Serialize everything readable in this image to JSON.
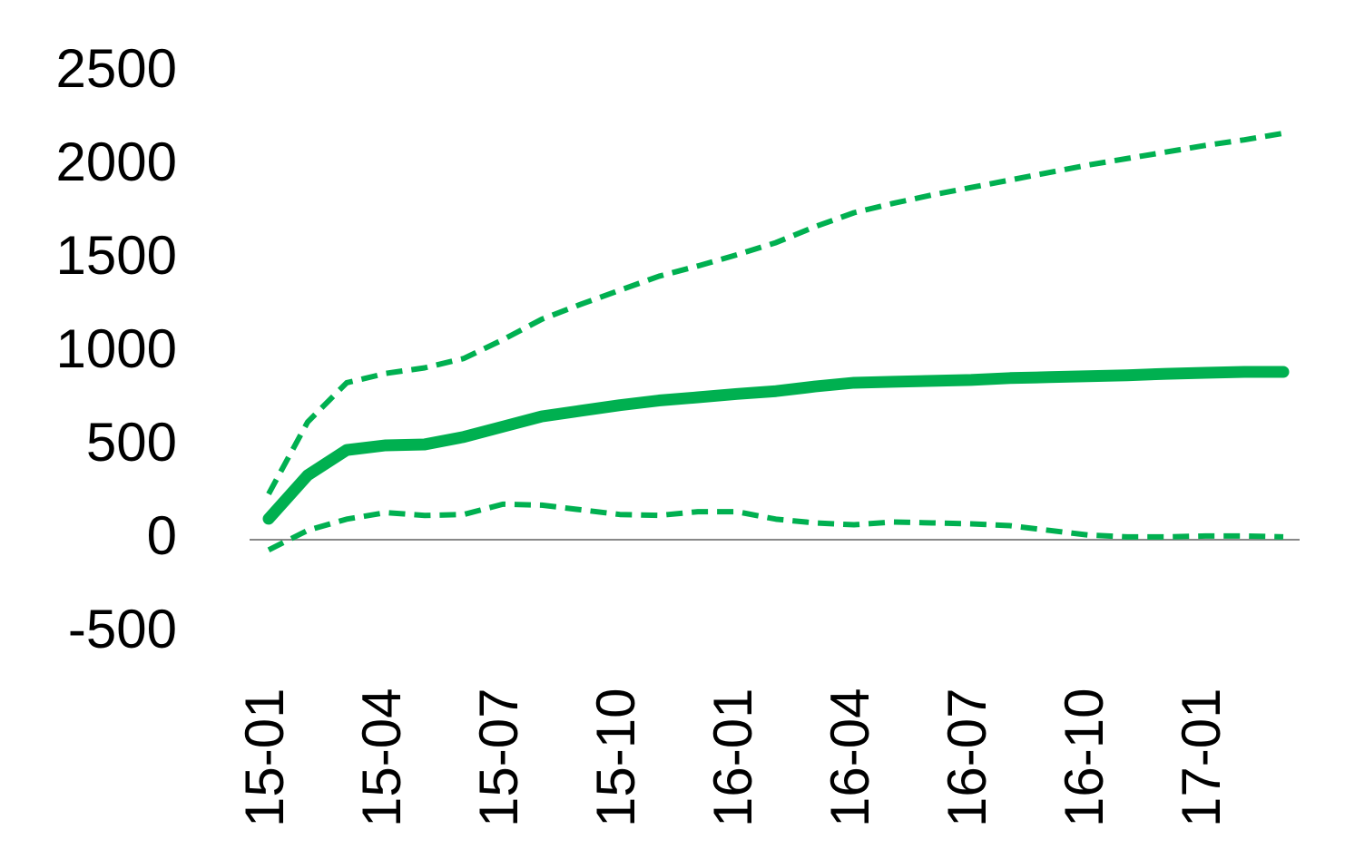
{
  "chart_data": {
    "type": "line",
    "categories": [
      "15-01",
      null,
      null,
      "15-04",
      null,
      null,
      "15-07",
      null,
      null,
      "15-10",
      null,
      null,
      "16-01",
      null,
      null,
      "16-04",
      null,
      null,
      "16-07",
      null,
      null,
      "16-10",
      null,
      null,
      "17-01",
      null,
      null
    ],
    "series": [
      {
        "color": "#00b050",
        "line_style": "solid",
        "values": [
          112,
          345,
          480,
          505,
          510,
          550,
          605,
          660,
          690,
          720,
          745,
          762,
          780,
          795,
          820,
          840,
          845,
          850,
          855,
          865,
          870,
          875,
          880,
          888,
          893,
          898,
          898
        ]
      },
      {
        "color": "#00b050",
        "line_style": "dashed",
        "values": [
          245,
          630,
          840,
          890,
          920,
          970,
          1070,
          1180,
          1260,
          1335,
          1410,
          1465,
          1525,
          1590,
          1675,
          1750,
          1800,
          1845,
          1885,
          1925,
          1965,
          2005,
          2040,
          2075,
          2110,
          2140,
          2175
        ]
      },
      {
        "color": "#00b050",
        "line_style": "dashed",
        "values": [
          -55,
          50,
          110,
          145,
          130,
          135,
          190,
          185,
          160,
          135,
          130,
          150,
          150,
          110,
          90,
          80,
          95,
          90,
          85,
          75,
          50,
          25,
          15,
          15,
          20,
          20,
          15
        ]
      }
    ],
    "ylim": [
      -500,
      2500
    ],
    "yticks": [
      -500,
      0,
      500,
      1000,
      1500,
      2000,
      2500
    ],
    "grid": false,
    "zero_line": true
  }
}
